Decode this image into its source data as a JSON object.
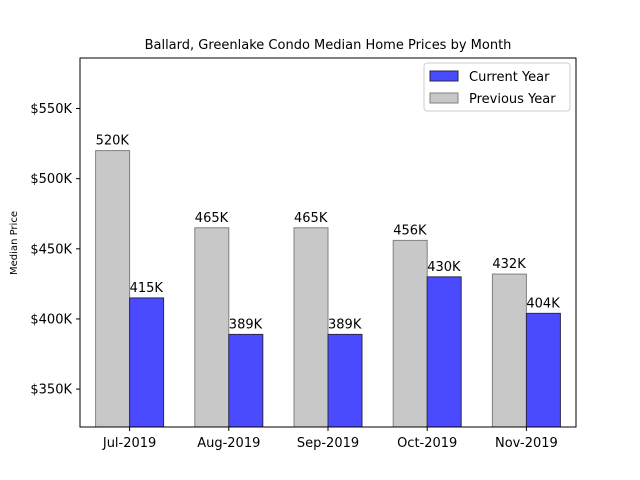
{
  "chart_data": {
    "type": "bar",
    "title": "Ballard, Greenlake Condo Median Home Prices by Month",
    "xlabel": "",
    "ylabel": "Median Price",
    "categories": [
      "Jul-2019",
      "Aug-2019",
      "Sep-2019",
      "Oct-2019",
      "Nov-2019"
    ],
    "series": [
      {
        "name": "Previous Year",
        "values": [
          520000,
          465000,
          465000,
          456000,
          432000
        ],
        "labels": [
          "520K",
          "465K",
          "465K",
          "456K",
          "432K"
        ],
        "color": "#c8c8c8",
        "edge_color": "#808080"
      },
      {
        "name": "Current Year",
        "values": [
          415000,
          389000,
          389000,
          430000,
          404000
        ],
        "labels": [
          "415K",
          "389K",
          "389K",
          "430K",
          "404K"
        ],
        "color": "#4a4aff",
        "edge_color": "#2a2a4a"
      }
    ],
    "ylim": [
      323000,
      586000
    ],
    "yticks": [
      350000,
      400000,
      450000,
      500000,
      550000
    ],
    "ytick_labels": [
      "$350K",
      "$400K",
      "$450K",
      "$500K",
      "$550K"
    ],
    "legend": {
      "position": "top-right",
      "entries": [
        "Current Year",
        "Previous Year"
      ]
    },
    "grid": false
  }
}
